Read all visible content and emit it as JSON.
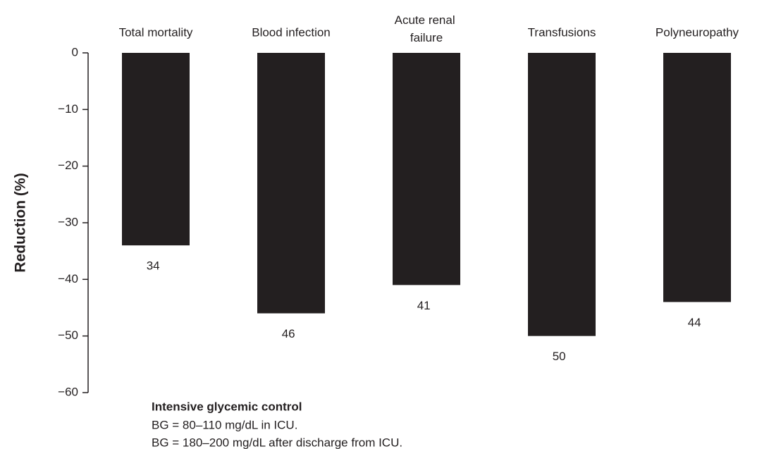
{
  "chart_data": {
    "type": "bar",
    "y_label": "Reduction (%)",
    "categories": [
      "Total mortality",
      "Blood infection",
      "Acute renal failure",
      "Transfusions",
      "Polyneuropathy"
    ],
    "values": [
      -34,
      -46,
      -41,
      -50,
      -44
    ],
    "value_labels": [
      "34",
      "46",
      "41",
      "50",
      "44"
    ],
    "color": "#231f20",
    "ylim": [
      -60,
      0
    ],
    "yticks": [
      0,
      {
        "value": -10,
        "label": "−10"
      },
      {
        "value": -20,
        "label": "−20"
      },
      {
        "value": -30,
        "label": "−30"
      },
      {
        "value": -40,
        "label": "−40"
      },
      {
        "value": -50,
        "label": "−50"
      },
      {
        "value": -60,
        "label": "−60"
      }
    ],
    "annotations": [
      "Intensive glycemic control",
      "BG = 80–110 mg/dL in ICU.",
      "BG = 180–200 mg/dL after discharge from ICU."
    ]
  }
}
